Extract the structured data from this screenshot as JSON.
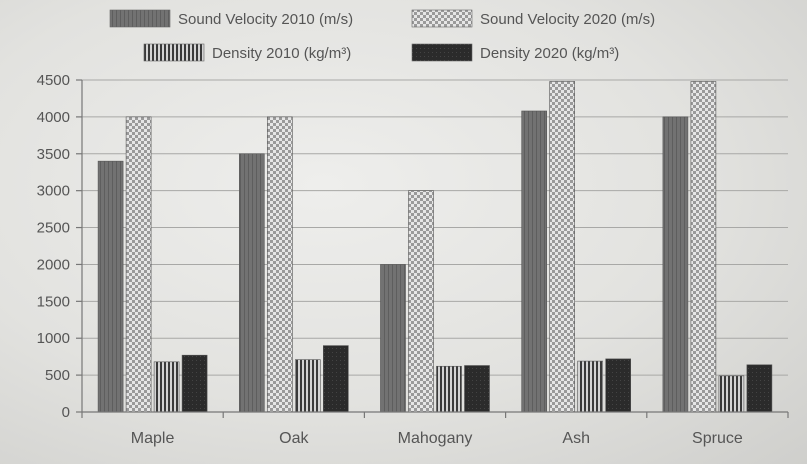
{
  "chart_data": {
    "type": "bar",
    "title": "",
    "xlabel": "",
    "ylabel": "",
    "ylim": [
      0,
      4500
    ],
    "yticks": [
      0,
      500,
      1000,
      1500,
      2000,
      2500,
      3000,
      3500,
      4000,
      4500
    ],
    "grid": true,
    "legend": "top-center",
    "categories": [
      "Maple",
      "Oak",
      "Mahogany",
      "Ash",
      "Spruce"
    ],
    "series": [
      {
        "name": "Sound Velocity 2010 (m/s)",
        "values": [
          3400,
          3500,
          2000,
          4080,
          4000
        ],
        "pattern": "solid-gray",
        "color": "#6f6f6f"
      },
      {
        "name": "Sound Velocity 2020 (m/s)",
        "values": [
          4000,
          4000,
          3000,
          4480,
          4480
        ],
        "pattern": "checker",
        "color": "#e0e0e0"
      },
      {
        "name": "Density 2010 (kg/m³)",
        "values": [
          680,
          710,
          620,
          690,
          490
        ],
        "pattern": "vertical-lines",
        "color": "#4a4a4a"
      },
      {
        "name": "Density 2020 (kg/m³)",
        "values": [
          770,
          900,
          630,
          720,
          640
        ],
        "pattern": "solid-dark",
        "color": "#2a2a2a"
      }
    ]
  }
}
